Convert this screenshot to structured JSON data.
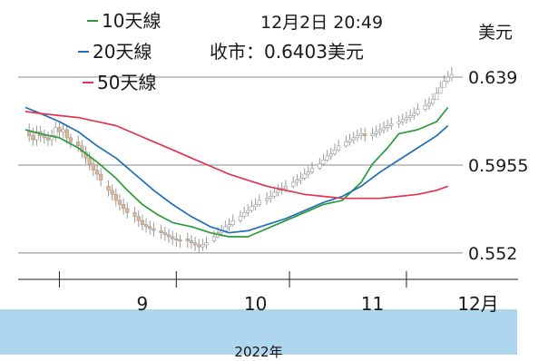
{
  "header": {
    "datetime": "12月2日 20:49",
    "close_text": "收市：0.6403美元",
    "unit": "美元"
  },
  "footer": {
    "year": "2022年"
  },
  "colors": {
    "ma10": "#2a9a3a",
    "ma20": "#1f6fb8",
    "ma50": "#e0364f",
    "candle_up_fill": "#ffffff",
    "candle_down_fill": "#e8b48a",
    "candle_edge": "#9a9a9a",
    "grid": "#888888",
    "axis": "#222222"
  },
  "chart_data": {
    "type": "line",
    "title": "",
    "xlabel": "",
    "ylabel": "",
    "ylim": [
      0.547,
      0.648
    ],
    "y_ticks": [
      {
        "value": 0.639,
        "label": "0.639"
      },
      {
        "value": 0.5955,
        "label": "0.5955"
      },
      {
        "value": 0.552,
        "label": "0.552"
      }
    ],
    "x_ticks": [
      {
        "day": 22,
        "label": "9"
      },
      {
        "day": 52,
        "label": "10"
      },
      {
        "day": 83,
        "label": "11"
      },
      {
        "day": 111,
        "label": "12月"
      }
    ],
    "x_tick_marks": [
      0,
      31,
      61,
      92
    ],
    "x_domain": [
      -9,
      105
    ],
    "legend": [
      "10天線",
      "20天線",
      "50天線"
    ],
    "series": [
      {
        "name": "10天線",
        "color_key": "ma10",
        "x": [
          -9,
          -5,
          0,
          5,
          10,
          15,
          18,
          22,
          26,
          30,
          35,
          40,
          45,
          50,
          55,
          60,
          65,
          70,
          75,
          80,
          83,
          87,
          90,
          95,
          100,
          103
        ],
        "values": [
          0.613,
          0.611,
          0.609,
          0.604,
          0.597,
          0.589,
          0.583,
          0.576,
          0.571,
          0.567,
          0.565,
          0.562,
          0.56,
          0.56,
          0.564,
          0.568,
          0.572,
          0.576,
          0.578,
          0.587,
          0.596,
          0.604,
          0.611,
          0.613,
          0.617,
          0.624
        ]
      },
      {
        "name": "20天線",
        "color_key": "ma20",
        "x": [
          -9,
          -5,
          0,
          5,
          10,
          15,
          20,
          25,
          30,
          35,
          40,
          45,
          50,
          55,
          60,
          65,
          70,
          75,
          80,
          85,
          90,
          95,
          100,
          103
        ],
        "values": [
          0.624,
          0.621,
          0.617,
          0.612,
          0.605,
          0.599,
          0.591,
          0.583,
          0.576,
          0.57,
          0.565,
          0.562,
          0.563,
          0.566,
          0.569,
          0.573,
          0.577,
          0.58,
          0.585,
          0.592,
          0.598,
          0.604,
          0.61,
          0.615
        ]
      },
      {
        "name": "50天線",
        "color_key": "ma50",
        "x": [
          -9,
          -5,
          0,
          5,
          10,
          15,
          20,
          25,
          30,
          35,
          40,
          45,
          50,
          55,
          60,
          65,
          70,
          75,
          80,
          85,
          90,
          95,
          100,
          103
        ],
        "values": [
          0.622,
          0.621,
          0.62,
          0.619,
          0.617,
          0.615,
          0.611,
          0.607,
          0.603,
          0.599,
          0.595,
          0.591,
          0.588,
          0.585,
          0.583,
          0.581,
          0.58,
          0.579,
          0.579,
          0.579,
          0.58,
          0.581,
          0.583,
          0.585
        ]
      }
    ],
    "candles": {
      "x": [
        -8,
        -7,
        -6,
        -5,
        -4,
        -3,
        -2,
        -1,
        0,
        1,
        2,
        3,
        5,
        6,
        7,
        8,
        9,
        10,
        11,
        13,
        14,
        15,
        16,
        17,
        18,
        20,
        21,
        22,
        23,
        24,
        25,
        27,
        28,
        29,
        30,
        31,
        32,
        34,
        35,
        36,
        37,
        38,
        39,
        41,
        42,
        43,
        44,
        45,
        46,
        48,
        49,
        50,
        51,
        52,
        53,
        55,
        56,
        57,
        58,
        59,
        60,
        62,
        63,
        64,
        65,
        66,
        67,
        69,
        70,
        71,
        72,
        73,
        74,
        76,
        77,
        78,
        79,
        80,
        81,
        83,
        84,
        85,
        86,
        87,
        88,
        90,
        91,
        92,
        93,
        94,
        95,
        97,
        98,
        99,
        100,
        101,
        102,
        103,
        104
      ],
      "open": [
        0.612,
        0.61,
        0.608,
        0.612,
        0.61,
        0.609,
        0.608,
        0.61,
        0.614,
        0.612,
        0.613,
        0.609,
        0.607,
        0.605,
        0.602,
        0.599,
        0.596,
        0.593,
        0.591,
        0.585,
        0.583,
        0.581,
        0.578,
        0.576,
        0.574,
        0.572,
        0.57,
        0.568,
        0.566,
        0.565,
        0.564,
        0.563,
        0.562,
        0.561,
        0.56,
        0.559,
        0.5585,
        0.559,
        0.558,
        0.557,
        0.556,
        0.555,
        0.556,
        0.558,
        0.56,
        0.562,
        0.563,
        0.565,
        0.566,
        0.568,
        0.57,
        0.572,
        0.573,
        0.575,
        0.576,
        0.578,
        0.579,
        0.58,
        0.582,
        0.583,
        0.584,
        0.585,
        0.587,
        0.588,
        0.589,
        0.591,
        0.592,
        0.594,
        0.596,
        0.598,
        0.6,
        0.601,
        0.603,
        0.605,
        0.607,
        0.608,
        0.609,
        0.61,
        0.611,
        0.61,
        0.611,
        0.612,
        0.613,
        0.614,
        0.615,
        0.616,
        0.617,
        0.618,
        0.619,
        0.62,
        0.621,
        0.623,
        0.625,
        0.626,
        0.628,
        0.631,
        0.634,
        0.637,
        0.639
      ],
      "close": [
        0.61,
        0.608,
        0.612,
        0.61,
        0.609,
        0.608,
        0.61,
        0.614,
        0.612,
        0.613,
        0.609,
        0.607,
        0.605,
        0.602,
        0.599,
        0.596,
        0.593,
        0.591,
        0.588,
        0.583,
        0.581,
        0.578,
        0.576,
        0.574,
        0.572,
        0.57,
        0.568,
        0.566,
        0.565,
        0.564,
        0.563,
        0.562,
        0.561,
        0.56,
        0.559,
        0.5585,
        0.558,
        0.558,
        0.557,
        0.556,
        0.555,
        0.556,
        0.557,
        0.56,
        0.562,
        0.563,
        0.565,
        0.566,
        0.568,
        0.57,
        0.572,
        0.573,
        0.575,
        0.576,
        0.578,
        0.579,
        0.58,
        0.582,
        0.583,
        0.584,
        0.585,
        0.587,
        0.588,
        0.589,
        0.591,
        0.592,
        0.594,
        0.596,
        0.598,
        0.6,
        0.601,
        0.603,
        0.605,
        0.607,
        0.608,
        0.609,
        0.61,
        0.611,
        0.61,
        0.611,
        0.612,
        0.613,
        0.614,
        0.615,
        0.616,
        0.617,
        0.618,
        0.619,
        0.62,
        0.621,
        0.623,
        0.625,
        0.626,
        0.628,
        0.631,
        0.634,
        0.637,
        0.639,
        0.6403
      ],
      "high": [
        0.616,
        0.614,
        0.615,
        0.615,
        0.613,
        0.612,
        0.613,
        0.617,
        0.617,
        0.616,
        0.615,
        0.611,
        0.61,
        0.608,
        0.605,
        0.602,
        0.599,
        0.596,
        0.594,
        0.588,
        0.586,
        0.584,
        0.581,
        0.579,
        0.577,
        0.575,
        0.573,
        0.571,
        0.569,
        0.568,
        0.567,
        0.566,
        0.565,
        0.564,
        0.563,
        0.562,
        0.561,
        0.562,
        0.561,
        0.56,
        0.559,
        0.559,
        0.56,
        0.563,
        0.565,
        0.566,
        0.568,
        0.569,
        0.571,
        0.573,
        0.575,
        0.576,
        0.578,
        0.579,
        0.581,
        0.582,
        0.583,
        0.585,
        0.586,
        0.587,
        0.588,
        0.59,
        0.591,
        0.592,
        0.594,
        0.595,
        0.597,
        0.599,
        0.601,
        0.603,
        0.604,
        0.606,
        0.608,
        0.61,
        0.611,
        0.612,
        0.613,
        0.614,
        0.614,
        0.614,
        0.615,
        0.616,
        0.617,
        0.618,
        0.619,
        0.62,
        0.621,
        0.622,
        0.623,
        0.624,
        0.626,
        0.628,
        0.629,
        0.631,
        0.634,
        0.637,
        0.64,
        0.642,
        0.644
      ],
      "low": [
        0.607,
        0.605,
        0.605,
        0.607,
        0.606,
        0.605,
        0.605,
        0.607,
        0.609,
        0.609,
        0.606,
        0.604,
        0.602,
        0.599,
        0.596,
        0.593,
        0.59,
        0.588,
        0.585,
        0.58,
        0.578,
        0.575,
        0.573,
        0.571,
        0.569,
        0.567,
        0.565,
        0.563,
        0.562,
        0.561,
        0.56,
        0.559,
        0.558,
        0.557,
        0.556,
        0.555,
        0.5545,
        0.5545,
        0.554,
        0.553,
        0.552,
        0.553,
        0.554,
        0.557,
        0.559,
        0.56,
        0.562,
        0.563,
        0.565,
        0.567,
        0.569,
        0.57,
        0.572,
        0.573,
        0.575,
        0.576,
        0.577,
        0.579,
        0.58,
        0.581,
        0.582,
        0.584,
        0.585,
        0.586,
        0.588,
        0.589,
        0.591,
        0.593,
        0.595,
        0.597,
        0.598,
        0.6,
        0.602,
        0.604,
        0.605,
        0.606,
        0.607,
        0.608,
        0.607,
        0.608,
        0.609,
        0.61,
        0.611,
        0.612,
        0.613,
        0.614,
        0.615,
        0.616,
        0.617,
        0.618,
        0.62,
        0.622,
        0.623,
        0.625,
        0.628,
        0.631,
        0.634,
        0.636,
        0.637
      ]
    }
  }
}
